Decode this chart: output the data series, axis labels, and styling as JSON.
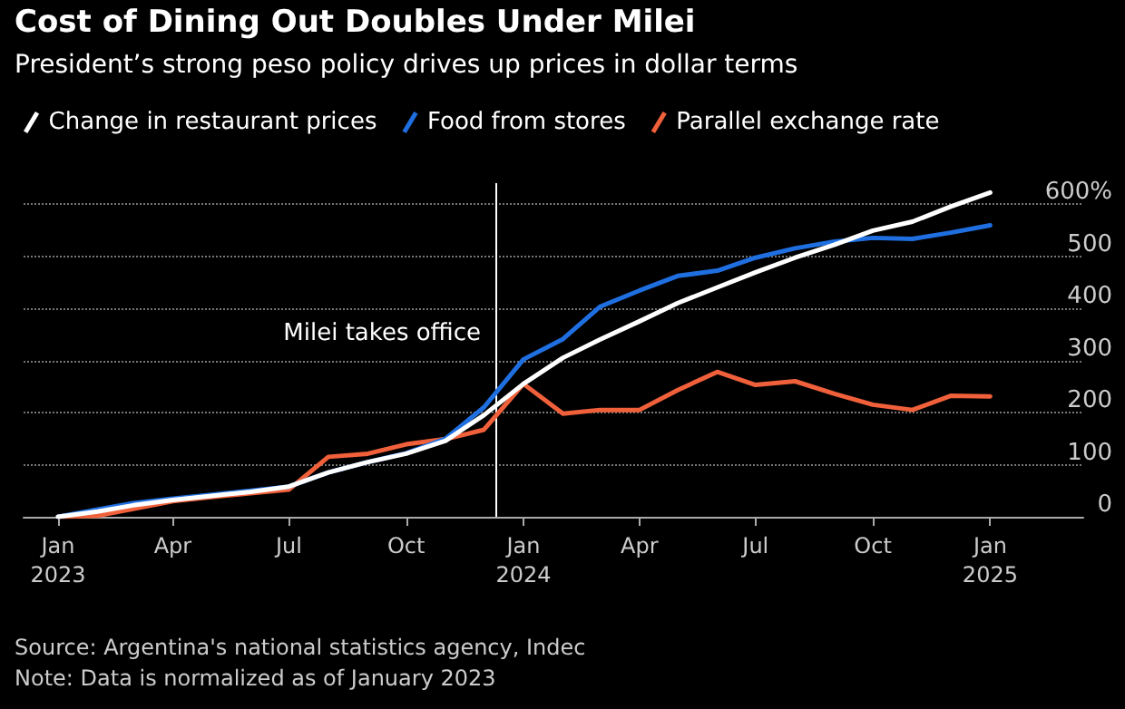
{
  "chart_data": {
    "type": "line",
    "title": "Cost of Dining Out Doubles Under Milei",
    "subtitle": "President’s strong peso policy drives up prices in dollar terms",
    "x": [
      "2023-01",
      "2023-02",
      "2023-03",
      "2023-04",
      "2023-05",
      "2023-06",
      "2023-07",
      "2023-08",
      "2023-09",
      "2023-10",
      "2023-11",
      "2023-12",
      "2024-01",
      "2024-02",
      "2024-03",
      "2024-04",
      "2024-05",
      "2024-06",
      "2024-07",
      "2024-08",
      "2024-09",
      "2024-10",
      "2024-11",
      "2024-12",
      "2025-01"
    ],
    "series": [
      {
        "name": "Change in restaurant prices",
        "color": "#ffffff",
        "values": [
          0,
          10,
          22,
          32,
          40,
          48,
          58,
          85,
          105,
          121,
          146,
          195,
          255,
          305,
          340,
          375,
          410,
          440,
          469,
          497,
          522,
          549,
          566,
          595,
          622
        ]
      },
      {
        "name": "Food from stores",
        "color": "#1f6fe0",
        "values": [
          0,
          14,
          26,
          35,
          42,
          50,
          58,
          85,
          105,
          122,
          150,
          210,
          302,
          341,
          403,
          434,
          462,
          472,
          497,
          515,
          528,
          535,
          533,
          545,
          559
        ]
      },
      {
        "name": "Parallel exchange rate",
        "color": "#f0603a",
        "values": [
          0,
          2,
          15,
          30,
          38,
          45,
          52,
          115,
          121,
          139,
          149,
          167,
          255,
          198,
          205,
          205,
          243,
          278,
          253,
          260,
          236,
          215,
          205,
          232,
          231
        ]
      }
    ],
    "xlim": [
      "2022-12-05",
      "2025-03-15"
    ],
    "xticks": [
      {
        "value": "2023-01",
        "label": "Jan\n2023"
      },
      {
        "value": "2023-04",
        "label": "Apr"
      },
      {
        "value": "2023-07",
        "label": "Jul"
      },
      {
        "value": "2023-10",
        "label": "Oct"
      },
      {
        "value": "2024-01",
        "label": "Jan\n2024"
      },
      {
        "value": "2024-04",
        "label": "Apr"
      },
      {
        "value": "2024-07",
        "label": "Jul"
      },
      {
        "value": "2024-10",
        "label": "Oct"
      },
      {
        "value": "2025-01",
        "label": "Jan\n2025"
      }
    ],
    "ylim": [
      0,
      640
    ],
    "yticks": [
      0,
      100,
      200,
      300,
      400,
      500,
      {
        "value": 600,
        "label": "600%"
      }
    ],
    "grid": "y",
    "legend": "top left",
    "marker": "none",
    "line_style": "solid",
    "ref_lines": [
      {
        "axis": "x",
        "value": "2023-12-10",
        "label": "Milei takes office",
        "color": "#ffffff"
      }
    ],
    "annotations": [
      "Source: Argentina's national statistics agency, Indec",
      "Note: Data is normalized as of January 2023"
    ]
  }
}
